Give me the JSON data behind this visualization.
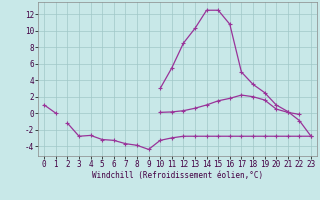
{
  "bg_color": "#c8e8e8",
  "grid_color": "#a0c8c8",
  "line_color": "#993399",
  "xlabel": "Windchill (Refroidissement éolien,°C)",
  "x": [
    0,
    1,
    2,
    3,
    4,
    5,
    6,
    7,
    8,
    9,
    10,
    11,
    12,
    13,
    14,
    15,
    16,
    17,
    18,
    19,
    20,
    21,
    22,
    23
  ],
  "line1": [
    1.0,
    0.0,
    null,
    null,
    null,
    null,
    null,
    null,
    null,
    null,
    0.1,
    0.15,
    0.3,
    0.6,
    1.0,
    1.5,
    1.8,
    2.2,
    2.0,
    1.6,
    0.5,
    0.1,
    -0.15,
    null
  ],
  "line2": [
    null,
    null,
    null,
    null,
    null,
    null,
    null,
    null,
    null,
    null,
    3.0,
    5.5,
    8.5,
    10.3,
    12.5,
    12.5,
    10.8,
    5.0,
    3.5,
    2.5,
    1.0,
    0.2,
    -0.9,
    -2.8
  ],
  "line3": [
    null,
    null,
    -1.2,
    -2.8,
    -2.7,
    -3.2,
    -3.3,
    -3.7,
    -3.9,
    -4.4,
    -3.3,
    -3.0,
    -2.8,
    -2.8,
    -2.8,
    -2.8,
    -2.8,
    -2.8,
    -2.8,
    -2.8,
    -2.8,
    -2.8,
    -2.8,
    -2.8
  ],
  "ylim": [
    -5.2,
    13.5
  ],
  "xlim": [
    -0.5,
    23.5
  ],
  "yticks": [
    -4,
    -2,
    0,
    2,
    4,
    6,
    8,
    10,
    12
  ],
  "xticks": [
    0,
    1,
    2,
    3,
    4,
    5,
    6,
    7,
    8,
    9,
    10,
    11,
    12,
    13,
    14,
    15,
    16,
    17,
    18,
    19,
    20,
    21,
    22,
    23
  ],
  "tick_fontsize": 5.5,
  "xlabel_fontsize": 5.5,
  "lw": 0.9,
  "marker_size": 3.0
}
